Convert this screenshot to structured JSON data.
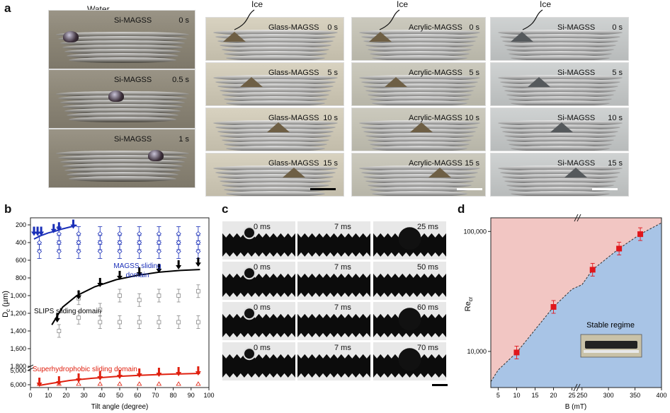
{
  "panel_a": {
    "letter": "a",
    "water_label": "Water",
    "ice_label": "Ice",
    "si_water_frames": [
      {
        "label": "Si-MAGSS",
        "time": "0 s"
      },
      {
        "label": "Si-MAGSS",
        "time": "0.5 s"
      },
      {
        "label": "Si-MAGSS",
        "time": "1 s"
      }
    ],
    "glass_frames": [
      {
        "label": "Glass-MAGSS",
        "time": "0 s"
      },
      {
        "label": "Glass-MAGSS",
        "time": "5 s"
      },
      {
        "label": "Glass-MAGSS",
        "time": "10 s"
      },
      {
        "label": "Glass-MAGSS",
        "time": "15 s"
      }
    ],
    "acrylic_frames": [
      {
        "label": "Acrylic-MAGSS",
        "time": "0 s"
      },
      {
        "label": "Acrylic-MAGSS",
        "time": "5 s"
      },
      {
        "label": "Acrylic-MAGSS",
        "time": "10 s"
      },
      {
        "label": "Acrylic-MAGSS",
        "time": "15 s"
      }
    ],
    "si_ice_frames": [
      {
        "label": "Si-MAGSS",
        "time": "0 s"
      },
      {
        "label": "Si-MAGSS",
        "time": "5 s"
      },
      {
        "label": "Si-MAGSS",
        "time": "10 s"
      },
      {
        "label": "Si-MAGSS",
        "time": "15 s"
      }
    ]
  },
  "panel_b": {
    "letter": "b",
    "xlabel": "Tilt angle (degree)",
    "ylabel_main": "D",
    "ylabel_sub": "c",
    "ylabel_unit": " (µm)",
    "xticks": [
      "0",
      "10",
      "20",
      "30",
      "40",
      "50",
      "60",
      "70",
      "80",
      "90",
      "100"
    ],
    "yticks": [
      "200",
      "400",
      "600",
      "800",
      "1,000",
      "1,200",
      "1,400",
      "1,600",
      "1,800",
      "5,000",
      "6,000"
    ],
    "domain_magss": "MAGSS sliding",
    "domain_magss_2": "domain",
    "domain_slips": "SLIPS sliding domain",
    "domain_super": "Superhydrophobic sliding domain",
    "colors": {
      "magss": "#1a2fb8",
      "slips": "#000000",
      "super": "#e0200f"
    }
  },
  "panel_c": {
    "letter": "c",
    "rows": [
      [
        "0 ms",
        "7 ms",
        "25 ms"
      ],
      [
        "0 ms",
        "7 ms",
        "50 ms"
      ],
      [
        "0 ms",
        "7 ms",
        "60 ms"
      ],
      [
        "0 ms",
        "7 ms",
        "70 ms"
      ]
    ]
  },
  "panel_d": {
    "letter": "d",
    "xlabel": "B (mT)",
    "ylabel_main": "Re",
    "ylabel_sub": "cr",
    "xticks": [
      "5",
      "10",
      "15",
      "20",
      "25",
      "250",
      "300",
      "350",
      "400"
    ],
    "yticks": [
      "100,000",
      "10,000"
    ],
    "stable_label": "Stable regime",
    "colors": {
      "unstable": "#f2c6c3",
      "stable": "#a8c4e6",
      "marker": "#e0161b"
    }
  },
  "chart_data": [
    {
      "type": "scatter",
      "panel": "b",
      "xlabel": "Tilt angle (degree)",
      "ylabel": "Dc (µm)",
      "xlim": [
        0,
        100
      ],
      "series": [
        {
          "name": "MAGSS sliding domain",
          "x": [
            2,
            4,
            6,
            13,
            16,
            24
          ],
          "y": [
            300,
            300,
            300,
            270,
            250,
            220
          ]
        },
        {
          "name": "SLIPS sliding domain",
          "x": [
            15,
            27,
            39,
            50,
            61,
            72,
            83,
            94
          ],
          "y": [
            1280,
            1020,
            880,
            800,
            760,
            720,
            680,
            650
          ]
        },
        {
          "name": "Superhydrophobic sliding domain",
          "x": [
            5,
            16,
            27,
            39,
            50,
            61,
            72,
            83,
            94
          ],
          "y": [
            6000,
            5900,
            5700,
            5550,
            5450,
            5350,
            5300,
            5250,
            5200
          ]
        }
      ]
    },
    {
      "type": "scatter",
      "panel": "d",
      "xlabel": "B (mT)",
      "ylabel": "Recr",
      "series": [
        {
          "x": [
            "10",
            "20",
            "270",
            "320",
            "360"
          ],
          "y": [
            9800,
            23500,
            48000,
            72000,
            95000
          ]
        }
      ]
    }
  ]
}
